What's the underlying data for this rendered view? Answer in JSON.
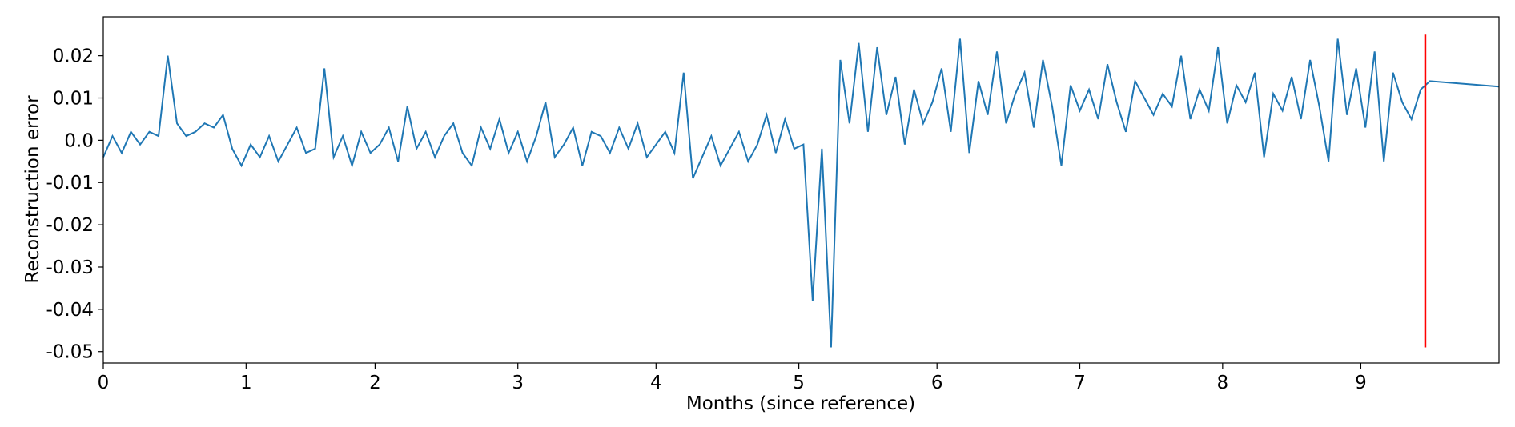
{
  "chart_data": {
    "type": "line",
    "xlabel": "Months (since reference)",
    "ylabel": "Reconstruction error",
    "x": [
      0,
      2,
      4,
      6,
      8,
      10,
      12,
      14,
      16,
      18,
      20,
      22,
      24,
      26,
      28,
      30,
      32,
      34,
      36,
      38,
      40,
      42,
      44,
      46,
      48,
      50,
      52,
      54,
      56,
      58,
      60,
      62,
      64,
      66,
      68,
      70,
      72,
      74,
      76,
      78,
      80,
      82,
      84,
      86,
      88,
      90,
      92,
      94,
      96,
      98,
      100,
      102,
      104,
      106,
      108,
      110,
      112,
      114,
      116,
      118,
      120,
      122,
      124,
      126,
      128,
      130,
      132,
      134,
      136,
      138,
      140,
      142,
      144,
      146,
      148,
      150,
      152,
      154,
      156,
      158,
      160,
      162,
      164,
      166,
      168,
      170,
      172,
      174,
      176,
      178,
      180,
      182,
      184,
      186,
      188,
      190,
      192,
      194,
      196,
      198,
      200,
      202,
      204,
      206,
      208,
      210,
      212,
      214,
      216,
      218,
      220,
      222,
      224,
      226,
      228,
      230,
      232,
      234,
      236,
      238,
      240,
      242,
      244,
      246,
      248,
      250,
      252,
      254,
      256,
      258,
      260,
      262,
      264,
      266,
      268,
      270,
      272,
      274,
      276,
      278,
      280,
      282,
      284,
      286,
      288,
      303
    ],
    "series": [
      {
        "color": "#1f77b4",
        "values": [
          -0.004,
          0.001,
          -0.003,
          0.002,
          -0.001,
          0.002,
          0.001,
          0.02,
          0.004,
          0.001,
          0.002,
          0.004,
          0.003,
          0.006,
          -0.002,
          -0.006,
          -0.001,
          -0.004,
          0.001,
          -0.005,
          -0.001,
          0.003,
          -0.003,
          -0.002,
          0.017,
          -0.004,
          0.001,
          -0.006,
          0.002,
          -0.003,
          -0.001,
          0.003,
          -0.005,
          0.008,
          -0.002,
          0.002,
          -0.004,
          0.001,
          0.004,
          -0.003,
          -0.006,
          0.003,
          -0.002,
          0.005,
          -0.003,
          0.002,
          -0.005,
          0.001,
          0.009,
          -0.004,
          -0.001,
          0.003,
          -0.006,
          0.002,
          0.001,
          -0.003,
          0.003,
          -0.002,
          0.004,
          -0.004,
          -0.001,
          0.002,
          -0.003,
          0.016,
          -0.009,
          -0.004,
          0.001,
          -0.006,
          -0.002,
          0.002,
          -0.005,
          -0.001,
          0.006,
          -0.003,
          0.005,
          -0.002,
          -0.001,
          -0.038,
          -0.002,
          -0.049,
          0.019,
          0.004,
          0.023,
          0.002,
          0.022,
          0.006,
          0.015,
          -0.001,
          0.012,
          0.004,
          0.009,
          0.017,
          0.002,
          0.024,
          -0.003,
          0.014,
          0.006,
          0.021,
          0.004,
          0.011,
          0.016,
          0.003,
          0.019,
          0.008,
          -0.006,
          0.013,
          0.007,
          0.012,
          0.005,
          0.018,
          0.009,
          0.002,
          0.014,
          0.01,
          0.006,
          0.011,
          0.008,
          0.02,
          0.005,
          0.012,
          0.007,
          0.022,
          0.004,
          0.013,
          0.009,
          0.016,
          -0.004,
          0.011,
          0.007,
          0.015,
          0.005,
          0.019,
          0.008,
          -0.005,
          0.024,
          0.006,
          0.017,
          0.003,
          0.021,
          -0.005,
          0.016,
          0.009,
          0.005,
          0.012,
          0.014,
          0.0127
        ]
      }
    ],
    "xlim": [
      0,
      303
    ],
    "xticks": [
      {
        "value": 0,
        "label": "0"
      },
      {
        "value": 31,
        "label": "1"
      },
      {
        "value": 59,
        "label": "2"
      },
      {
        "value": 90,
        "label": "3"
      },
      {
        "value": 120,
        "label": "4"
      },
      {
        "value": 151,
        "label": "5"
      },
      {
        "value": 181,
        "label": "6"
      },
      {
        "value": 212,
        "label": "7"
      },
      {
        "value": 243,
        "label": "8"
      },
      {
        "value": 273,
        "label": "9"
      }
    ],
    "ylim": [
      -0.0527,
      0.0292
    ],
    "yticks": [
      0.02,
      0.01,
      {
        "value": 0,
        "label": "0.0"
      },
      -0.01,
      -0.02,
      -0.03,
      -0.04,
      -0.05
    ],
    "vline": {
      "x": 287,
      "ymin": -0.049,
      "ymax": 0.025,
      "color": "#ff0000"
    }
  }
}
